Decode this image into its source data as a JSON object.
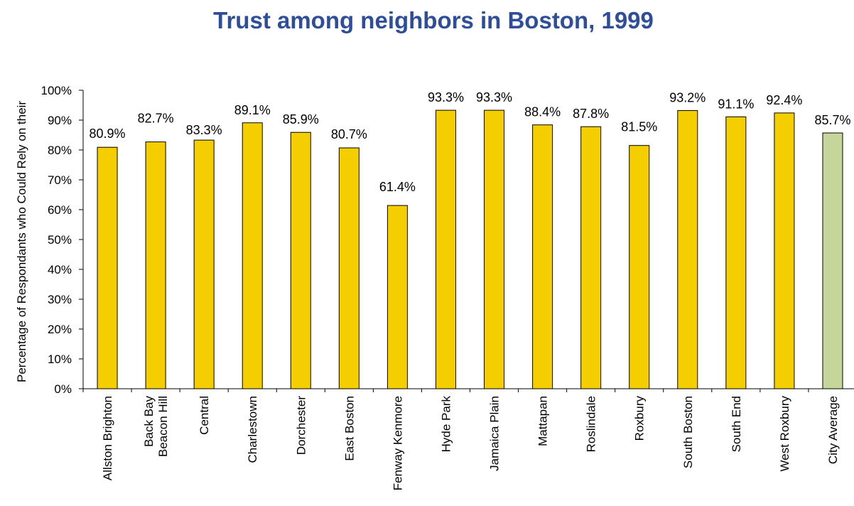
{
  "chart_data": {
    "type": "bar",
    "title": "Trust among neighbors in Boston, 1999",
    "ylabel": "Percentage of Respondants who Could Rely on their",
    "xlabel": "",
    "ylim": [
      0,
      100
    ],
    "yticks": [
      "0%",
      "10%",
      "20%",
      "30%",
      "40%",
      "50%",
      "60%",
      "70%",
      "80%",
      "90%",
      "100%"
    ],
    "categories": [
      [
        "Allston Brighton"
      ],
      [
        "Back Bay",
        "Beacon Hill"
      ],
      [
        "Central"
      ],
      [
        "Charlestown"
      ],
      [
        "Dorchester"
      ],
      [
        "East Boston"
      ],
      [
        "Fenway Kenmore"
      ],
      [
        "Hyde Park"
      ],
      [
        "Jamaica Plain"
      ],
      [
        "Mattapan"
      ],
      [
        "Roslindale"
      ],
      [
        "Roxbury"
      ],
      [
        "South Boston"
      ],
      [
        "South End"
      ],
      [
        "West Roxbury"
      ],
      [
        "City Average"
      ]
    ],
    "values": [
      80.9,
      82.7,
      83.3,
      89.1,
      85.9,
      80.7,
      61.4,
      93.3,
      93.3,
      88.4,
      87.8,
      81.5,
      93.2,
      91.1,
      92.4,
      85.7
    ],
    "data_labels": [
      "80.9%",
      "82.7%",
      "83.3%",
      "89.1%",
      "85.9%",
      "80.7%",
      "61.4%",
      "93.3%",
      "93.3%",
      "88.4%",
      "87.8%",
      "81.5%",
      "93.2%",
      "91.1%",
      "92.4%",
      "85.7%"
    ],
    "colors": {
      "bar": "#F5CE00",
      "average_bar": "#C6D69B",
      "title": "#2E4E9C",
      "axis": "#000000"
    },
    "grid": false,
    "legend": "none"
  }
}
